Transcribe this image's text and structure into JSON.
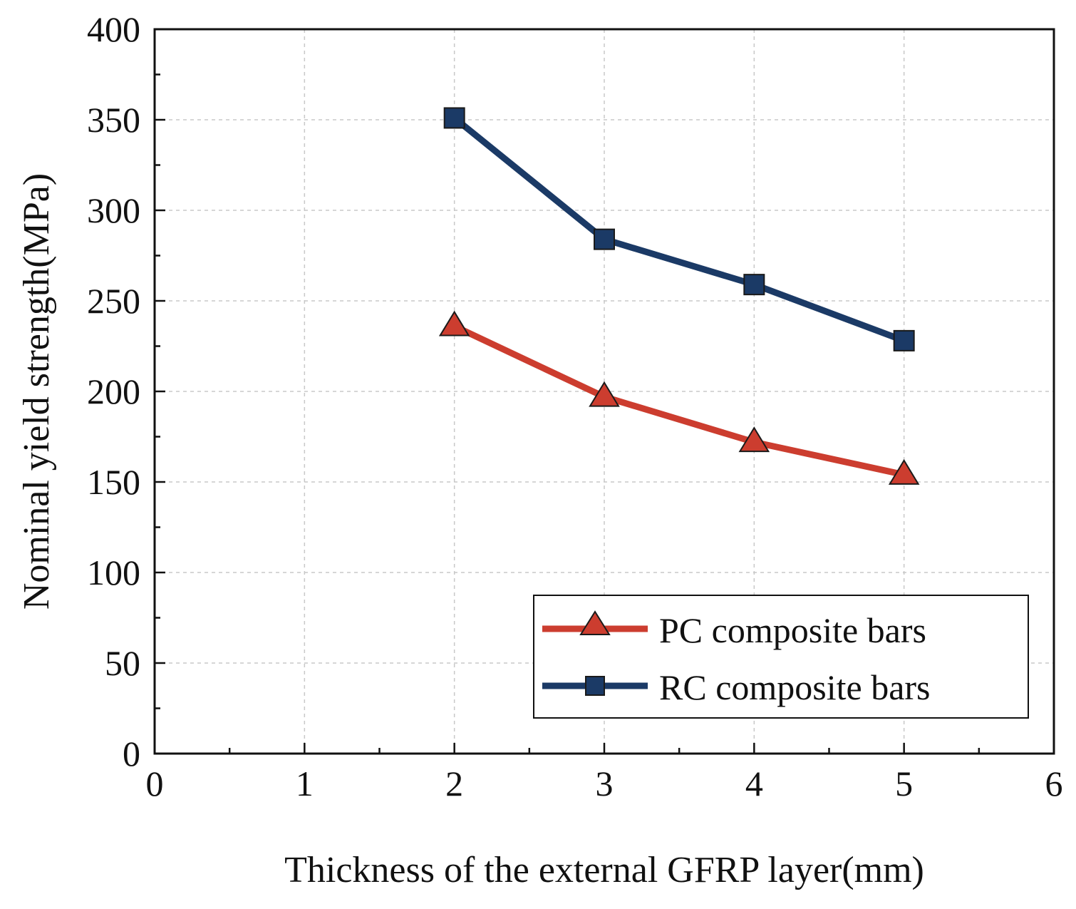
{
  "chart_data": {
    "type": "line",
    "title": "",
    "xlabel": "Thickness of the external GFRP layer(mm)",
    "ylabel": "Nominal yield strength(MPa)",
    "xlim": [
      0,
      6
    ],
    "ylim": [
      0,
      400
    ],
    "xticks": [
      0,
      1,
      2,
      3,
      4,
      5,
      6
    ],
    "yticks": [
      0,
      50,
      100,
      150,
      200,
      250,
      300,
      350,
      400
    ],
    "grid": true,
    "legend_position": "bottom-right",
    "x": [
      2,
      3,
      4,
      5
    ],
    "series": [
      {
        "name": "PC composite bars",
        "marker": "triangle",
        "color": "#cc3d2f",
        "marker_edge": "#1a1a1a",
        "values": [
          236,
          197,
          172,
          154
        ]
      },
      {
        "name": "RC composite bars",
        "marker": "square",
        "color": "#1b3a66",
        "marker_edge": "#1a1a1a",
        "values": [
          351,
          284,
          259,
          228
        ]
      }
    ]
  }
}
